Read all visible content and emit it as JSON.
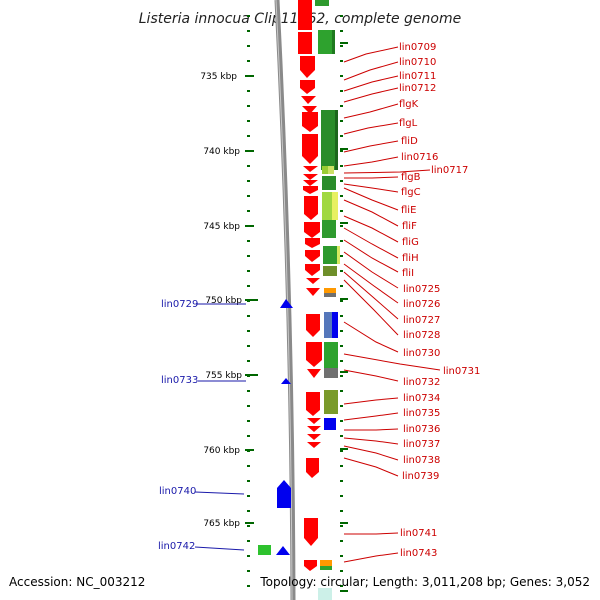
{
  "title": "Listeria innocua Clip11262, complete genome",
  "footer": {
    "accession": "Accession: NC_003212",
    "topology": "Topology: circular; Length: 3,011,208 bp; Genes: 3,052"
  },
  "colors": {
    "forward_gene": "#ff0000",
    "reverse_gene": "#0000ee",
    "right_label": "#cc0000",
    "left_label": "#1a1aaa",
    "tick": "#006600",
    "backbone": "#8a8a8a"
  },
  "scale_labels": [
    "735 kbp",
    "740 kbp",
    "745 kbp",
    "750 kbp",
    "755 kbp",
    "760 kbp",
    "765 kbp"
  ],
  "right_genes": [
    "lin0709",
    "lin0710",
    "lin0711",
    "lin0712",
    "flgK",
    "flgL",
    "fliD",
    "lin0716",
    "lin0717",
    "flgB",
    "flgC",
    "fliE",
    "fliF",
    "fliG",
    "fliH",
    "fliI",
    "lin0725",
    "lin0726",
    "lin0727",
    "lin0728",
    "lin0730",
    "lin0731",
    "lin0732",
    "lin0734",
    "lin0735",
    "lin0736",
    "lin0737",
    "lin0738",
    "lin0739",
    "lin0741",
    "lin0743"
  ],
  "left_genes": [
    "lin0729",
    "lin0733",
    "lin0740",
    "lin0742"
  ]
}
